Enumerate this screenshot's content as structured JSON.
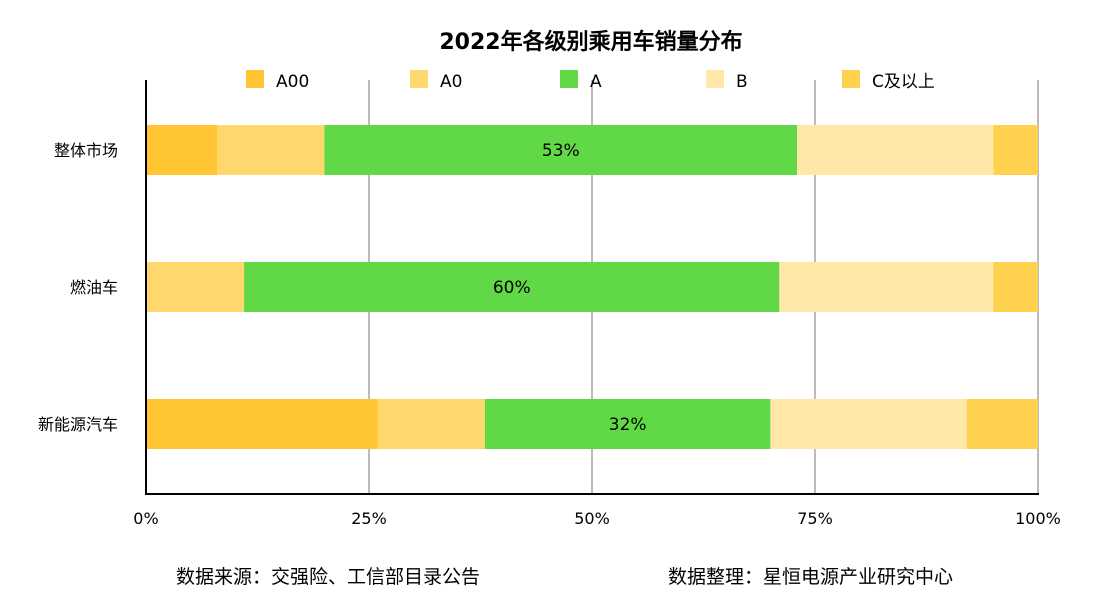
{
  "chart_data": {
    "type": "bar",
    "orientation": "horizontal",
    "stacked": true,
    "percent_stacked": true,
    "title": "2022年各级别乘用车销量分布",
    "categories": [
      "整体市场",
      "燃油车",
      "新能源汽车"
    ],
    "series": [
      {
        "name": "A00",
        "color": "#FFC533",
        "values": [
          8,
          0,
          26
        ]
      },
      {
        "name": "A0",
        "color": "#FED86C",
        "values": [
          12,
          11,
          12
        ]
      },
      {
        "name": "A",
        "color": "#61D845",
        "values": [
          53,
          60,
          32
        ]
      },
      {
        "name": "B",
        "color": "#FEE7A7",
        "values": [
          22,
          24,
          22
        ]
      },
      {
        "name": "C及以上",
        "color": "#FED14F",
        "values": [
          5,
          5,
          8
        ]
      }
    ],
    "data_labels": [
      {
        "series": "A",
        "category": "整体市场",
        "text": "53%"
      },
      {
        "series": "A",
        "category": "燃油车",
        "text": "60%"
      },
      {
        "series": "A",
        "category": "新能源汽车",
        "text": "32%"
      }
    ],
    "xlim": [
      0,
      100
    ],
    "x_ticks": [
      0,
      25,
      50,
      75,
      100
    ],
    "x_tick_labels": [
      "0%",
      "25%",
      "50%",
      "75%",
      "100%"
    ],
    "grid": "vertical",
    "legend_position": "top"
  },
  "footer": {
    "source": "数据来源：交强险、工信部目录公告",
    "compiled_by": "数据整理：星恒电源产业研究中心"
  }
}
